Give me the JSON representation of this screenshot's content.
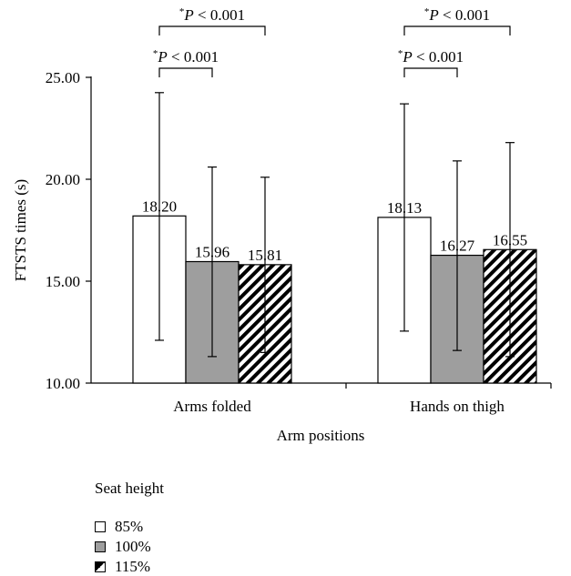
{
  "chart_data": {
    "type": "bar",
    "title": "",
    "xlabel": "Arm positions",
    "ylabel": "FTSTS times (s)",
    "ylim": [
      10,
      25
    ],
    "yticks": [
      "10.00",
      "15.00",
      "20.00",
      "25.00"
    ],
    "categories": [
      "Arms folded",
      "Hands on thigh"
    ],
    "series": [
      {
        "name": "85%",
        "values": [
          18.2,
          18.13
        ],
        "labels": [
          "18.20",
          "18.13"
        ],
        "error_low": [
          12.1,
          12.55
        ],
        "error_high": [
          24.25,
          23.7
        ],
        "color": "#ffffff",
        "pattern": "none"
      },
      {
        "name": "100%",
        "values": [
          15.96,
          16.27
        ],
        "labels": [
          "15.96",
          "16.27"
        ],
        "error_low": [
          11.3,
          11.6
        ],
        "error_high": [
          20.6,
          20.9
        ],
        "color": "#9e9e9e",
        "pattern": "none"
      },
      {
        "name": "115%",
        "values": [
          15.81,
          16.55
        ],
        "labels": [
          "15.81",
          "16.55"
        ],
        "error_low": [
          11.5,
          11.3
        ],
        "error_high": [
          20.1,
          21.8
        ],
        "color": "#ffffff",
        "pattern": "diagonal-stripes"
      }
    ],
    "significance": [
      {
        "category": "Arms folded",
        "from_series": 0,
        "to_series": 2,
        "label_star": "*",
        "label_text": "P < 0.001",
        "level": 2
      },
      {
        "category": "Arms folded",
        "from_series": 0,
        "to_series": 1,
        "label_star": "*",
        "label_text": "P < 0.001",
        "level": 1
      },
      {
        "category": "Hands on thigh",
        "from_series": 0,
        "to_series": 2,
        "label_star": "*",
        "label_text": "P < 0.001",
        "level": 2
      },
      {
        "category": "Hands on thigh",
        "from_series": 0,
        "to_series": 1,
        "label_star": "*",
        "label_text": "P < 0.001",
        "level": 1
      }
    ],
    "grid": false
  },
  "legend": {
    "title": "Seat height",
    "items": [
      "85%",
      "100%",
      "115%"
    ]
  }
}
